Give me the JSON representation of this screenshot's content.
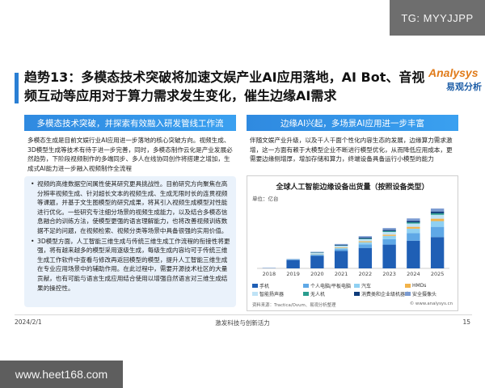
{
  "watermarks": {
    "top_right": "TG: MYYJJPP",
    "bottom_left": "www.heet168.com"
  },
  "title": "趋势13：多模态技术突破将加速文娱产业AI应用落地，AI Bot、音视频互动等应用对于算力需求发生变化，催生边缘AI需求",
  "logo": {
    "main": "Analysys",
    "sub": "易观分析"
  },
  "left_panel": {
    "header": "多模态技术突破，并探索有效融入研发管线工作流",
    "intro": "多模态生成是目前文娱行业AI应用进一步落地的核心突破方向。视频生成、3D模型生成等技术有待于进一步完善，同时，多模态制作云化是产业发展必然趋势，下阶段视频制作的多端同步、多人在线协同创作将搭建之增加，生成式AI能力进一步融入视频制作全流程",
    "bullets": [
      "视频的高维数据空间属性使其研究更具挑战性。目前研究方向聚焦在高分辨率视频生成、针对超长文本的视频生成、生成无限时长的连贯视频等课题，并基于文生图模型的研究成果，将其引入视频生成模型对性能进行优化。一些研究专注细分场景的视频生成能力，以及结合多模态信息融合的训练方法，使模型更强的语言理解能力，也将改善视频训练数据不足的问题，在视频检索、视频分类等场景中具备很强的实用价值。",
      "3D模型方面，人工智能三维生成与传统三维生成工作流程的衔接性将更强，将有越来越多的模型采用逐级生成，每级生成内容均可于传统三维生成工作软件中查看与修改再返回模型的模型，提升人工智能三维生成在专业应用场景中的辅助作用。在此过程中，需要开源技术社区的大量贡献，也有可能与语言生成应用结合使用以增强自然语言对三维生成结果的操控性。"
    ]
  },
  "right_panel": {
    "header": "边缘AI兴起，多场景AI应用进一步丰富",
    "intro": "伴随文娱产业升级，以及千人千面个性化内容生态的发展，边缘算力需求激增，这一方面有赖于大模型企业不断进行模型优化，从而降低应用成本，更需要边缘侧增厚，增加存储和算力，终端设备具备运行小模型的能力"
  },
  "chart_data": {
    "type": "bar",
    "stacked": true,
    "title": "全球人工智能边缘设备出货量（按照设备类型）",
    "unit": "单位：亿台",
    "categories": [
      "2018",
      "2019",
      "2020",
      "2021",
      "2022",
      "2023",
      "2024",
      "2025"
    ],
    "series": [
      {
        "name": "手机",
        "color": "#1f5fb5",
        "values": [
          0.1,
          2.8,
          4.2,
          5.8,
          6.8,
          7.9,
          9.2,
          10.4
        ]
      },
      {
        "name": "个人电脑/平板电脑",
        "color": "#5fa8e6",
        "values": [
          0.0,
          0.1,
          0.3,
          0.6,
          1.2,
          1.8,
          2.5,
          3.4
        ]
      },
      {
        "name": "汽车",
        "color": "#8fd0f2",
        "values": [
          0.0,
          0.1,
          0.2,
          0.4,
          0.7,
          1.1,
          1.5,
          1.9
        ]
      },
      {
        "name": "HMDs",
        "color": "#f2b34a",
        "values": [
          0.0,
          0.0,
          0.1,
          0.2,
          0.3,
          0.4,
          0.6,
          0.8
        ]
      },
      {
        "name": "智能扬声器",
        "color": "#bfe3f6",
        "values": [
          0.0,
          0.1,
          0.3,
          0.5,
          0.7,
          0.9,
          1.1,
          1.3
        ]
      },
      {
        "name": "无人机",
        "color": "#2a9d8f",
        "values": [
          0.0,
          0.0,
          0.1,
          0.1,
          0.2,
          0.3,
          0.4,
          0.5
        ]
      },
      {
        "name": "消费类和企业级机器人",
        "color": "#0d3b7a",
        "values": [
          0.0,
          0.0,
          0.1,
          0.2,
          0.3,
          0.4,
          0.5,
          0.6
        ]
      },
      {
        "name": "安全摄像头",
        "color": "#7b9bd1",
        "values": [
          0.0,
          0.1,
          0.2,
          0.3,
          0.5,
          0.6,
          0.8,
          1.0
        ]
      }
    ],
    "source_left": "资料来源：Tractica/Ovum、易观分析整理",
    "source_right": "© www.analysys.cn"
  },
  "footer": {
    "date": "2024/2/1",
    "center": "激发科技与创新活力",
    "page": "15"
  }
}
